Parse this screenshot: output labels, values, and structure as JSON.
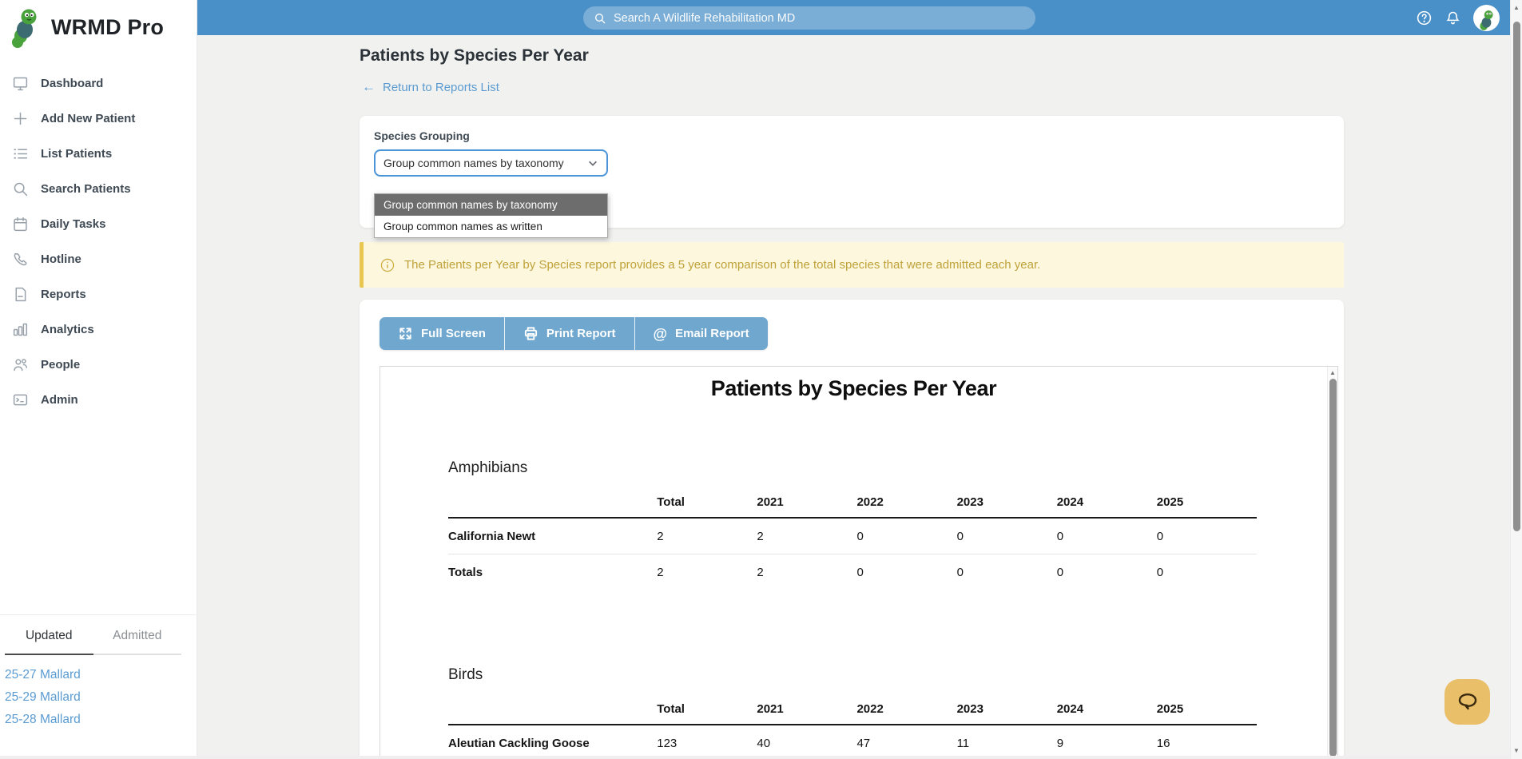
{
  "app": {
    "brand": "WRMD Pro"
  },
  "header": {
    "search_placeholder": "Search A Wildlife Rehabilitation MD"
  },
  "sidebar": {
    "items": [
      {
        "label": "Dashboard",
        "icon": "monitor-icon"
      },
      {
        "label": "Add New Patient",
        "icon": "plus-icon"
      },
      {
        "label": "List Patients",
        "icon": "list-icon"
      },
      {
        "label": "Search Patients",
        "icon": "search-icon"
      },
      {
        "label": "Daily Tasks",
        "icon": "calendar-icon"
      },
      {
        "label": "Hotline",
        "icon": "phone-icon"
      },
      {
        "label": "Reports",
        "icon": "document-icon"
      },
      {
        "label": "Analytics",
        "icon": "bar-chart-icon"
      },
      {
        "label": "People",
        "icon": "people-icon"
      },
      {
        "label": "Admin",
        "icon": "terminal-icon"
      }
    ],
    "tabs": {
      "updated": "Updated",
      "admitted": "Admitted"
    },
    "recent": [
      "25-27 Mallard",
      "25-29 Mallard",
      "25-28 Mallard"
    ]
  },
  "page": {
    "title": "Patients by Species Per Year",
    "back_link": "Return to Reports List",
    "back_arrow": "←",
    "grouping": {
      "label": "Species Grouping",
      "selected": "Group common names by taxonomy",
      "options": [
        "Group common names by taxonomy",
        "Group common names as written"
      ]
    },
    "notice": "The Patients per Year by Species report provides a 5 year comparison of the total species that were admitted each year.",
    "toolbar": {
      "full_screen": "Full Screen",
      "print": "Print Report",
      "email": "Email Report",
      "email_icon_glyph": "@"
    }
  },
  "report": {
    "title": "Patients by Species Per Year",
    "columns": [
      "Total",
      "2021",
      "2022",
      "2023",
      "2024",
      "2025"
    ],
    "sections": [
      {
        "group": "Amphibians",
        "rows": [
          {
            "name": "California Newt",
            "values": [
              2,
              2,
              0,
              0,
              0,
              0
            ]
          }
        ],
        "totals": {
          "name": "Totals",
          "values": [
            2,
            2,
            0,
            0,
            0,
            0
          ]
        }
      },
      {
        "group": "Birds",
        "rows": [
          {
            "name": "Aleutian Cackling Goose",
            "values": [
              123,
              40,
              47,
              11,
              9,
              16
            ]
          }
        ],
        "totals": null
      }
    ]
  },
  "scrollbar": {
    "up_glyph": "▲",
    "down_glyph": "▼"
  },
  "colors": {
    "header_blue": "#4a90c8",
    "button_blue": "#6fa7cf",
    "link_blue": "#5b9bd1",
    "banner_bg": "#fcf7dd",
    "banner_border": "#e8c64f",
    "banner_text": "#bfa23a",
    "option_highlight": "#6d6d6d",
    "select_focus": "#4a94d8",
    "chat_bg": "#e9bf6a",
    "sidebar_text": "#3f4a54",
    "icon_gray": "#98a1aa"
  }
}
